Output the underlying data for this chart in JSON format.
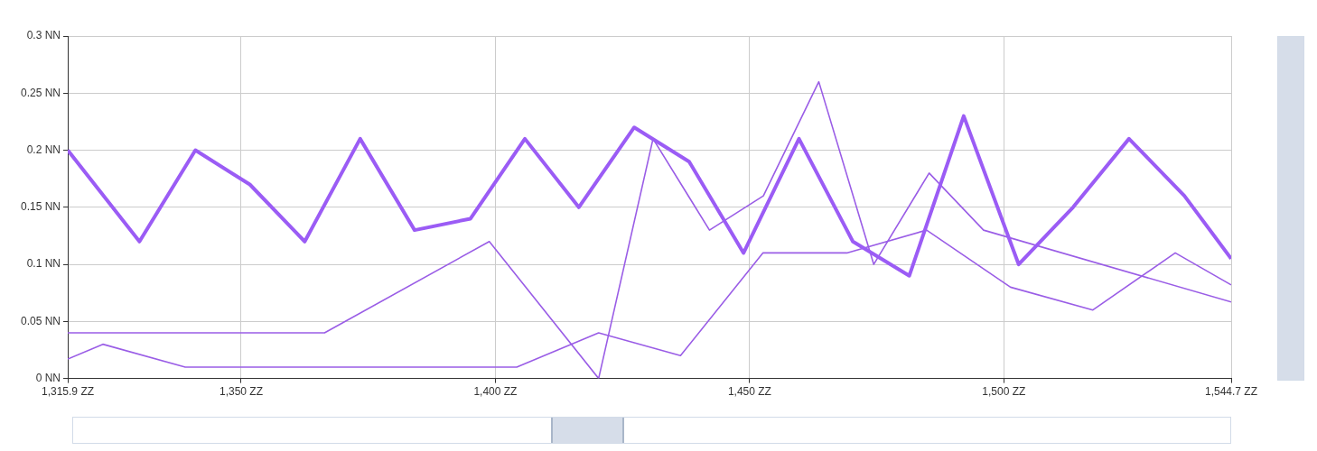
{
  "chart_data": {
    "type": "line",
    "grid": true,
    "marker": "none",
    "line_style": "solid",
    "xlim": [
      1315.9,
      1544.7
    ],
    "xticks": [
      {
        "value": 1315.9,
        "label": "1,315.9 ZZ"
      },
      {
        "value": 1350,
        "label": "1,350 ZZ"
      },
      {
        "value": 1400,
        "label": "1,400 ZZ"
      },
      {
        "value": 1450,
        "label": "1,450 ZZ"
      },
      {
        "value": 1500,
        "label": "1,500 ZZ"
      },
      {
        "value": 1544.7,
        "label": "1,544.7 ZZ"
      }
    ],
    "ylim": [
      0,
      0.3
    ],
    "yticks": [
      {
        "value": 0,
        "label": "0 NN"
      },
      {
        "value": 0.05,
        "label": "0.05 NN"
      },
      {
        "value": 0.1,
        "label": "0.1 NN"
      },
      {
        "value": 0.15,
        "label": "0.15 NN"
      },
      {
        "value": 0.2,
        "label": "0.2 NN"
      },
      {
        "value": 0.25,
        "label": "0.25 NN"
      },
      {
        "value": 0.3,
        "label": "0.3 NN"
      }
    ],
    "series": [
      {
        "color": "#9b5cf5",
        "x": [
          1315.9,
          1330.0,
          1341.0,
          1351.7,
          1362.5,
          1373.4,
          1384.1,
          1395.1,
          1405.8,
          1416.4,
          1427.3,
          1438.1,
          1448.8,
          1459.7,
          1470.3,
          1481.4,
          1492.1,
          1502.9,
          1513.6,
          1524.6,
          1535.5,
          1544.7
        ],
        "values": [
          0.2,
          0.12,
          0.2,
          0.17,
          0.12,
          0.21,
          0.13,
          0.14,
          0.21,
          0.15,
          0.22,
          0.19,
          0.11,
          0.21,
          0.12,
          0.09,
          0.23,
          0.1,
          0.15,
          0.21,
          0.16,
          0.105
        ]
      },
      {
        "color": "#9a5de6",
        "x": [
          1315.9,
          1366.4,
          1398.8,
          1420.3,
          1431.0,
          1442.1,
          1452.7,
          1463.6,
          1474.4,
          1485.3,
          1496.0,
          1544.7
        ],
        "values": [
          0.04,
          0.04,
          0.12,
          0.0,
          0.21,
          0.13,
          0.16,
          0.26,
          0.1,
          0.18,
          0.13,
          0.067
        ]
      },
      {
        "color": "#9a5de6",
        "x": [
          1315.9,
          1322.8,
          1339.0,
          1404.2,
          1420.3,
          1436.4,
          1452.6,
          1469.1,
          1484.8,
          1501.3,
          1517.5,
          1533.7,
          1544.7
        ],
        "values": [
          0.017,
          0.03,
          0.01,
          0.01,
          0.04,
          0.02,
          0.11,
          0.11,
          0.13,
          0.08,
          0.06,
          0.11,
          0.082
        ]
      }
    ]
  }
}
